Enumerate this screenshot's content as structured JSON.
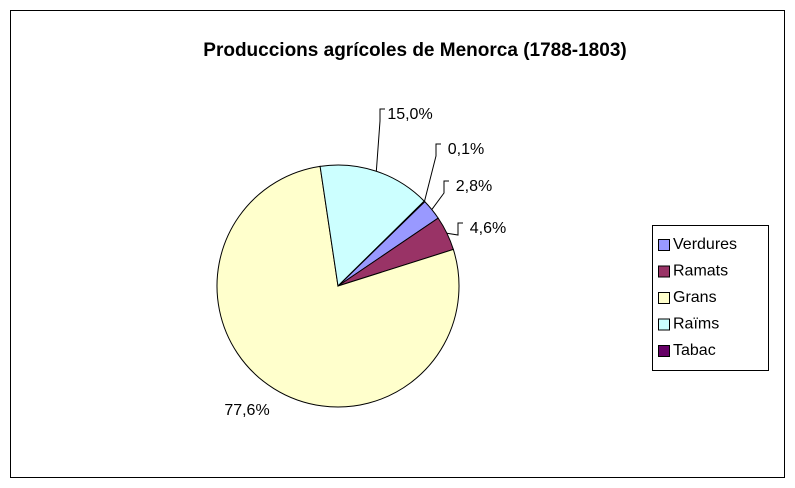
{
  "chart_data": {
    "type": "pie",
    "title": "Produccions agrícoles de Menorca (1788-1803)",
    "categories": [
      "Verdures",
      "Ramats",
      "Grans",
      "Raïms",
      "Tabac"
    ],
    "values": [
      2.8,
      4.6,
      77.6,
      15.0,
      0.1
    ],
    "value_labels": [
      "2,8%",
      "4,6%",
      "77,6%",
      "15,0%",
      "0,1%"
    ],
    "colors": [
      "#9999ff",
      "#993366",
      "#ffffcc",
      "#ccffff",
      "#660066"
    ],
    "legend": "right"
  }
}
